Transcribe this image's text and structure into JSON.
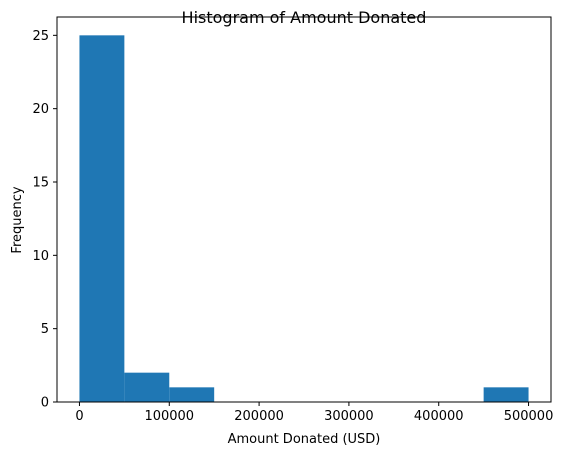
{
  "chart_data": {
    "type": "bar",
    "title": "Histogram of Amount Donated",
    "xlabel": "Amount Donated (USD)",
    "ylabel": "Frequency",
    "bins": [
      {
        "start": 0,
        "end": 50000,
        "count": 25
      },
      {
        "start": 50000,
        "end": 100000,
        "count": 2
      },
      {
        "start": 100000,
        "end": 150000,
        "count": 1
      },
      {
        "start": 150000,
        "end": 200000,
        "count": 0
      },
      {
        "start": 200000,
        "end": 250000,
        "count": 0
      },
      {
        "start": 250000,
        "end": 300000,
        "count": 0
      },
      {
        "start": 300000,
        "end": 350000,
        "count": 0
      },
      {
        "start": 350000,
        "end": 400000,
        "count": 0
      },
      {
        "start": 400000,
        "end": 450000,
        "count": 0
      },
      {
        "start": 450000,
        "end": 500000,
        "count": 1
      }
    ],
    "xlim": [
      -25000,
      525000
    ],
    "ylim": [
      0,
      26.25
    ],
    "xticks": [
      0,
      100000,
      200000,
      300000,
      400000,
      500000
    ],
    "xtick_labels": [
      "0",
      "100000",
      "200000",
      "300000",
      "400000",
      "500000"
    ],
    "yticks": [
      0,
      5,
      10,
      15,
      20,
      25
    ],
    "ytick_labels": [
      "0",
      "5",
      "10",
      "15",
      "20",
      "25"
    ],
    "bar_color": "#1f77b4",
    "grid": false
  }
}
